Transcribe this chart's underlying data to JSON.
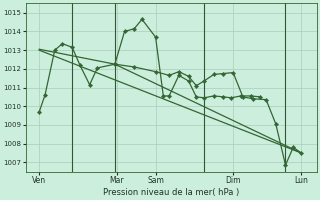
{
  "background_color": "#cceedd",
  "grid_color": "#aaccbb",
  "line_color": "#336633",
  "marker_color": "#336633",
  "xlabel": "Pression niveau de la mer( hPa )",
  "ylim": [
    1006.5,
    1015.5
  ],
  "xlim": [
    -0.2,
    14.8
  ],
  "yticks": [
    1007,
    1008,
    1009,
    1010,
    1011,
    1012,
    1013,
    1014,
    1015
  ],
  "xtick_labels": [
    "Ven",
    "Mar",
    "Sam",
    "Dim",
    "Lun"
  ],
  "xtick_positions": [
    0.5,
    4.5,
    6.5,
    10.5,
    14.0
  ],
  "vlines_x": [
    2.2,
    4.4,
    9.0,
    13.2
  ],
  "series": [
    {
      "x": [
        0.5,
        0.8,
        1.3,
        1.7,
        2.2,
        2.6,
        3.1,
        3.5,
        4.4,
        4.9,
        5.4,
        5.8,
        6.5,
        6.9,
        7.2,
        7.7,
        8.2,
        8.6,
        9.0,
        9.5,
        10.0,
        10.4,
        10.9,
        11.4,
        11.9
      ],
      "y": [
        1009.7,
        1010.6,
        1013.0,
        1013.35,
        1013.15,
        1012.2,
        1011.15,
        1012.05,
        1012.25,
        1014.0,
        1014.15,
        1014.65,
        1013.7,
        1010.55,
        1010.55,
        1011.65,
        1011.35,
        1010.5,
        1010.45,
        1010.55,
        1010.5,
        1010.45,
        1010.55,
        1010.55,
        1010.5
      ]
    },
    {
      "x": [
        0.5,
        14.0
      ],
      "y": [
        1013.0,
        1007.5
      ]
    },
    {
      "x": [
        0.5,
        4.4,
        14.0
      ],
      "y": [
        1013.05,
        1012.25,
        1007.5
      ]
    },
    {
      "x": [
        4.4,
        5.4,
        6.5,
        7.2,
        7.7,
        8.2,
        8.6,
        9.0,
        9.5,
        10.0,
        10.5,
        11.0,
        11.5,
        12.2,
        12.7,
        13.2,
        13.6,
        14.0
      ],
      "y": [
        1012.25,
        1012.1,
        1011.85,
        1011.65,
        1011.85,
        1011.6,
        1011.1,
        1011.35,
        1011.7,
        1011.75,
        1011.8,
        1010.5,
        1010.4,
        1010.35,
        1009.05,
        1006.85,
        1007.8,
        1007.5
      ]
    }
  ]
}
